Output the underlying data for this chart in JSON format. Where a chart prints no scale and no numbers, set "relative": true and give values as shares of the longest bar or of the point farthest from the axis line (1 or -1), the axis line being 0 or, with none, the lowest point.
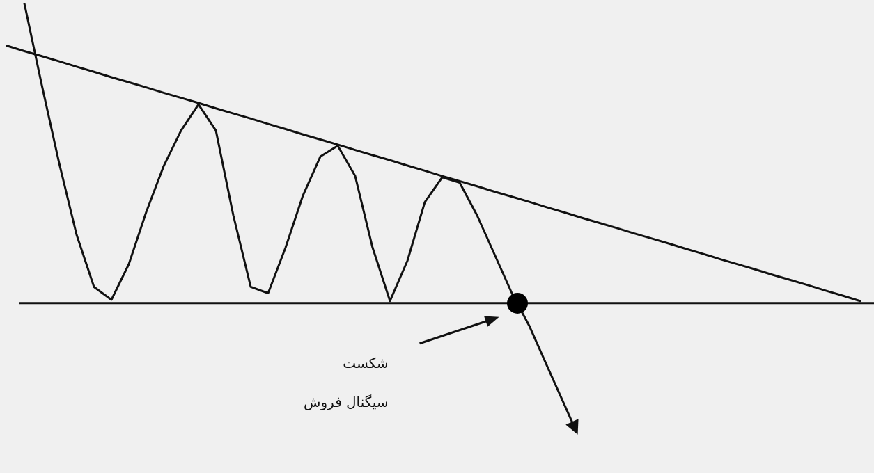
{
  "chart_data": {
    "type": "line",
    "relative": true,
    "legend": false,
    "tick_labels": false,
    "marker": "none",
    "line_style": "solid",
    "categories": [
      null,
      null,
      null,
      null,
      null,
      null,
      null,
      null,
      null,
      null,
      null,
      null,
      null,
      null,
      null,
      null,
      null,
      null,
      null,
      null,
      null,
      null,
      null,
      null,
      null,
      null,
      null,
      null,
      null,
      null,
      null,
      null,
      null,
      null,
      null,
      null,
      null,
      null,
      null,
      null,
      null,
      null,
      null,
      null,
      null,
      null,
      null,
      null,
      null,
      null
    ],
    "series": [
      {
        "color": "#111111",
        "values": [
          null,
          1.0,
          0.728,
          0.467,
          0.228,
          0.054,
          0.011,
          0.13,
          0.304,
          0.457,
          0.576,
          0.663,
          0.576,
          0.293,
          0.054,
          0.033,
          0.185,
          0.359,
          0.489,
          0.525,
          0.424,
          0.185,
          0.007,
          0.141,
          0.337,
          0.42,
          0.402,
          0.293,
          0.163,
          0.033,
          -0.076,
          -0.207,
          -0.337,
          null,
          null,
          null,
          null,
          null,
          null,
          null,
          null,
          null,
          null,
          null,
          null,
          null,
          null,
          null,
          null,
          null
        ]
      },
      {
        "color": "#111111",
        "values": [
          0.859,
          0.841,
          0.824,
          0.807,
          0.789,
          0.772,
          0.754,
          0.737,
          0.72,
          0.702,
          0.685,
          0.668,
          0.65,
          0.633,
          0.616,
          0.598,
          0.581,
          0.563,
          0.546,
          0.529,
          0.511,
          0.494,
          0.477,
          0.459,
          0.442,
          0.424,
          0.407,
          0.39,
          0.372,
          0.355,
          0.338,
          0.32,
          0.303,
          0.285,
          0.268,
          0.251,
          0.233,
          0.216,
          0.199,
          0.181,
          0.164,
          0.146,
          0.129,
          0.112,
          0.094,
          0.077,
          0.06,
          0.042,
          0.025,
          0.007
        ]
      }
    ],
    "ref_lines": [
      {
        "axis": "y",
        "value": 0,
        "color": "#111111"
      }
    ],
    "annotations": [
      "شکست",
      "سیگنال فروش"
    ]
  }
}
